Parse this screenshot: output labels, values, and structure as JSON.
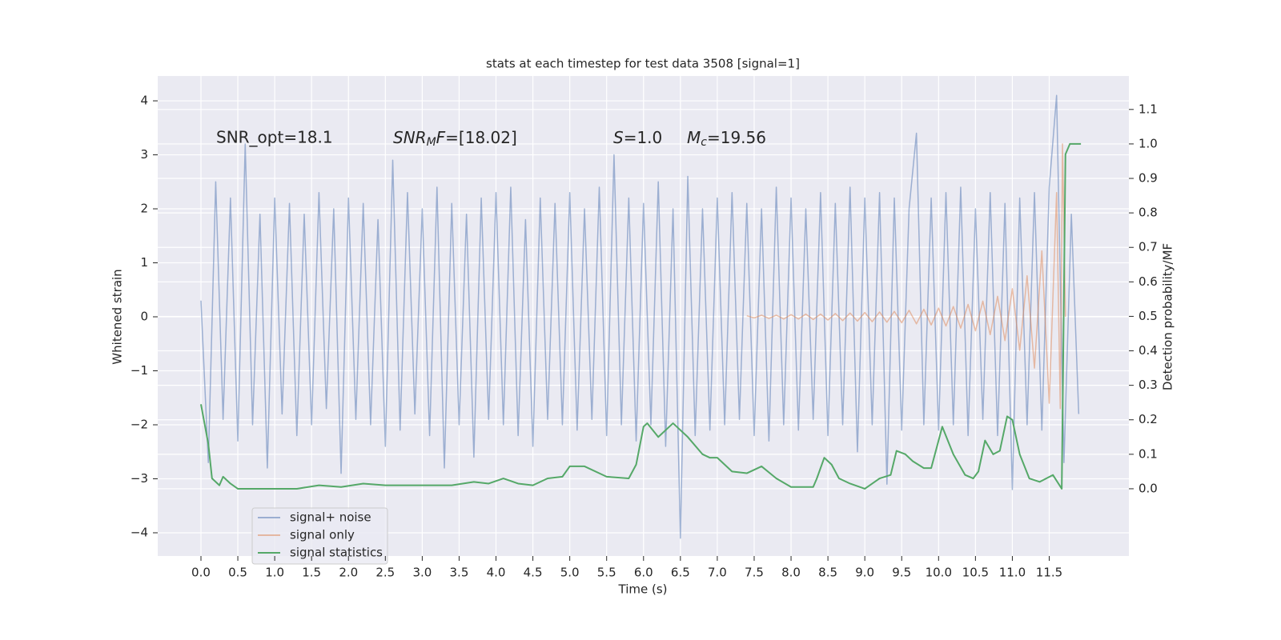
{
  "chart_data": {
    "type": "line",
    "title": "stats at each timestep for test data 3508 [signal=1]",
    "xlabel": "Time (s)",
    "ylabel": "Whitened strain",
    "y2label": "Detection probability/MF",
    "annotations": [
      {
        "text": "SNR_opt=18.1"
      },
      {
        "parts": [
          "SNR",
          "M",
          "F",
          "=[18.02]"
        ]
      },
      {
        "parts": [
          "S",
          "=1.0"
        ]
      },
      {
        "parts": [
          "M",
          "c",
          "=19.56"
        ]
      }
    ],
    "xlim": [
      -0.586,
      12.58
    ],
    "ylim": [
      -4.43,
      4.46
    ],
    "y2lim": [
      -0.195,
      1.197
    ],
    "xticks": [
      {
        "value": 0,
        "label": "0.0"
      },
      0.5,
      {
        "value": 1,
        "label": "1.0"
      },
      1.5,
      {
        "value": 2,
        "label": "2.0"
      },
      2.5,
      {
        "value": 3,
        "label": "3.0"
      },
      3.5,
      {
        "value": 4,
        "label": "4.0"
      },
      4.5,
      {
        "value": 5,
        "label": "5.0"
      },
      5.5,
      {
        "value": 6,
        "label": "6.0"
      },
      6.5,
      {
        "value": 7,
        "label": "7.0"
      },
      7.5,
      {
        "value": 8,
        "label": "8.0"
      },
      8.5,
      {
        "value": 9,
        "label": "9.0"
      },
      9.5,
      {
        "value": 10,
        "label": "10.0"
      },
      10.5,
      {
        "value": 11,
        "label": "11.0"
      },
      11.5
    ],
    "yticks": [
      {
        "value": -4,
        "label": "−4"
      },
      {
        "value": -3,
        "label": "−3"
      },
      {
        "value": -2,
        "label": "−2"
      },
      {
        "value": -1,
        "label": "−1"
      },
      0,
      1,
      2,
      3,
      4
    ],
    "y2ticks": [
      {
        "value": 0,
        "label": "0.0"
      },
      0.1,
      0.2,
      0.3,
      0.4,
      0.5,
      0.6,
      0.7,
      0.8,
      0.9,
      {
        "value": 1,
        "label": "1.0"
      },
      1.1
    ],
    "grid": true,
    "legend": "lower left",
    "series": [
      {
        "name": "signal+ noise",
        "color": "#4c72b0",
        "alpha": 0.5,
        "x": [
          0,
          0.1,
          0.2,
          0.3,
          0.4,
          0.5,
          0.6,
          0.7,
          0.8,
          0.9,
          1,
          1.1,
          1.2,
          1.3,
          1.4,
          1.5,
          1.6,
          1.7,
          1.8,
          1.9,
          2,
          2.1,
          2.2,
          2.3,
          2.4,
          2.5,
          2.6,
          2.7,
          2.8,
          2.9,
          3,
          3.1,
          3.2,
          3.3,
          3.4,
          3.5,
          3.6,
          3.7,
          3.8,
          3.9,
          4,
          4.1,
          4.2,
          4.3,
          4.4,
          4.5,
          4.6,
          4.7,
          4.8,
          4.9,
          5,
          5.1,
          5.2,
          5.3,
          5.4,
          5.5,
          5.6,
          5.7,
          5.8,
          5.9,
          6,
          6.1,
          6.2,
          6.3,
          6.4,
          6.5,
          6.6,
          6.7,
          6.8,
          6.9,
          7,
          7.1,
          7.2,
          7.3,
          7.4,
          7.5,
          7.6,
          7.7,
          7.8,
          7.9,
          8,
          8.1,
          8.2,
          8.3,
          8.4,
          8.5,
          8.6,
          8.7,
          8.8,
          8.9,
          9,
          9.1,
          9.2,
          9.3,
          9.4,
          9.5,
          9.6,
          9.7,
          9.8,
          9.9,
          10,
          10.1,
          10.2,
          10.3,
          10.4,
          10.5,
          10.6,
          10.7,
          10.8,
          10.9,
          11,
          11.1,
          11.2,
          11.3,
          11.4,
          11.5,
          11.6,
          11.7,
          11.8,
          11.9
        ],
        "values": [
          0.3,
          -2.7,
          2.5,
          -1.9,
          2.2,
          -2.3,
          3.2,
          -2.0,
          1.9,
          -2.8,
          2.2,
          -1.8,
          2.1,
          -2.2,
          1.9,
          -2.0,
          2.3,
          -1.7,
          2.0,
          -2.9,
          2.2,
          -1.9,
          2.1,
          -2.0,
          1.8,
          -2.4,
          2.9,
          -2.1,
          2.3,
          -1.8,
          2.0,
          -2.2,
          2.4,
          -2.8,
          2.1,
          -2.0,
          1.9,
          -2.6,
          2.2,
          -1.9,
          2.3,
          -2.0,
          2.4,
          -2.2,
          1.8,
          -2.4,
          2.2,
          -1.9,
          2.1,
          -2.0,
          2.3,
          -2.1,
          2.0,
          -1.9,
          2.4,
          -2.2,
          3.0,
          -2.0,
          2.2,
          -2.3,
          2.1,
          -2.0,
          2.5,
          -2.4,
          2.0,
          -4.1,
          2.6,
          -2.2,
          2.0,
          -2.1,
          2.2,
          -2.0,
          2.3,
          -1.9,
          2.1,
          -2.2,
          2.0,
          -2.3,
          2.4,
          -2.0,
          2.2,
          -2.1,
          2.0,
          -1.9,
          2.3,
          -2.2,
          2.1,
          -2.0,
          2.4,
          -2.5,
          2.2,
          -2.0,
          2.3,
          -3.1,
          2.2,
          -2.1,
          2.0,
          3.4,
          -2.0,
          2.2,
          -2.1,
          2.3,
          -2.0,
          2.4,
          -2.2,
          2.0,
          -1.9,
          2.3,
          -2.2,
          2.1,
          -3.2,
          2.2,
          -2.0,
          2.3,
          -2.1,
          2.4,
          4.1,
          -2.7,
          1.9,
          -1.8
        ]
      },
      {
        "name": "signal only",
        "color": "#dd8452",
        "alpha": 0.5,
        "x": [
          7.4,
          7.5,
          7.6,
          7.7,
          7.8,
          7.9,
          8,
          8.1,
          8.2,
          8.3,
          8.4,
          8.5,
          8.6,
          8.7,
          8.8,
          8.9,
          9,
          9.1,
          9.2,
          9.3,
          9.4,
          9.5,
          9.6,
          9.7,
          9.8,
          9.9,
          10,
          10.1,
          10.2,
          10.3,
          10.4,
          10.5,
          10.6,
          10.7,
          10.8,
          10.9,
          11,
          11.1,
          11.2,
          11.3,
          11.4,
          11.5,
          11.6,
          11.65,
          11.68,
          11.72
        ],
        "values": [
          0.02,
          -0.02,
          0.03,
          -0.03,
          0.03,
          -0.04,
          0.04,
          -0.04,
          0.05,
          -0.05,
          0.05,
          -0.06,
          0.06,
          -0.07,
          0.07,
          -0.08,
          0.08,
          -0.09,
          0.09,
          -0.1,
          0.1,
          -0.11,
          0.12,
          -0.13,
          0.14,
          -0.15,
          0.16,
          -0.17,
          0.19,
          -0.21,
          0.23,
          -0.26,
          0.29,
          -0.33,
          0.38,
          -0.44,
          0.52,
          -0.62,
          0.76,
          -0.95,
          1.22,
          -1.6,
          2.3,
          -1.7,
          3.2,
          0
        ]
      },
      {
        "name": "signal statistics",
        "color": "#55a868",
        "axis": "y2",
        "x": [
          0,
          0.1,
          0.15,
          0.25,
          0.3,
          0.4,
          0.5,
          0.7,
          1.0,
          1.3,
          1.6,
          1.9,
          2.2,
          2.5,
          2.8,
          3.1,
          3.4,
          3.7,
          3.9,
          4.1,
          4.3,
          4.5,
          4.7,
          4.9,
          5.0,
          5.2,
          5.5,
          5.8,
          5.9,
          6.0,
          6.05,
          6.2,
          6.4,
          6.6,
          6.8,
          6.9,
          7.0,
          7.2,
          7.4,
          7.6,
          7.8,
          8.0,
          8.3,
          8.35,
          8.45,
          8.55,
          8.65,
          8.8,
          9.0,
          9.2,
          9.35,
          9.43,
          9.55,
          9.65,
          9.8,
          9.9,
          10.05,
          10.2,
          10.36,
          10.47,
          10.54,
          10.63,
          10.74,
          10.83,
          10.93,
          11.0,
          11.1,
          11.23,
          11.37,
          11.55,
          11.67,
          11.72,
          11.78,
          11.93
        ],
        "values": [
          0.245,
          0.13,
          0.03,
          0.01,
          0.035,
          0.015,
          0,
          0,
          0,
          0,
          0.01,
          0.005,
          0.015,
          0.01,
          0.01,
          0.01,
          0.01,
          0.02,
          0.015,
          0.03,
          0.015,
          0.01,
          0.03,
          0.035,
          0.065,
          0.065,
          0.035,
          0.03,
          0.07,
          0.18,
          0.19,
          0.15,
          0.19,
          0.15,
          0.1,
          0.09,
          0.09,
          0.05,
          0.045,
          0.065,
          0.03,
          0.005,
          0.005,
          0.03,
          0.09,
          0.07,
          0.03,
          0.015,
          0,
          0.03,
          0.04,
          0.11,
          0.1,
          0.08,
          0.06,
          0.06,
          0.18,
          0.1,
          0.04,
          0.03,
          0.05,
          0.14,
          0.1,
          0.11,
          0.21,
          0.2,
          0.1,
          0.03,
          0.02,
          0.04,
          0,
          0.97,
          1,
          1
        ]
      }
    ]
  }
}
